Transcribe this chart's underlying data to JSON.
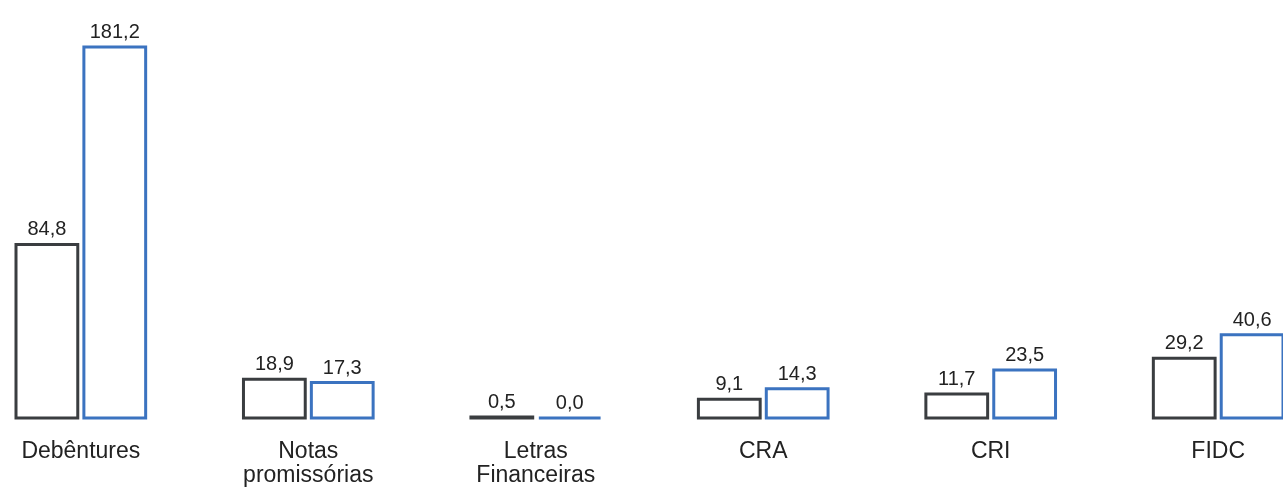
{
  "chart_data": {
    "type": "bar",
    "categories": [
      "Debêntures",
      "Notas promissórias",
      "Letras Financeiras",
      "CRA",
      "CRI",
      "FIDC"
    ],
    "series": [
      {
        "color": "#3a3d40",
        "values": [
          84.8,
          18.9,
          0.5,
          9.1,
          11.7,
          29.2
        ],
        "value_labels": [
          "84,8",
          "18,9",
          "0,5",
          "9,1",
          "11,7",
          "29,2"
        ]
      },
      {
        "color": "#3b73c0",
        "values": [
          181.2,
          17.3,
          0.0,
          14.3,
          23.5,
          40.6
        ],
        "value_labels": [
          "181,2",
          "17,3",
          "0,0",
          "14,3",
          "23,5",
          "40,6"
        ]
      }
    ],
    "tick_labels": "x",
    "grid": false
  }
}
